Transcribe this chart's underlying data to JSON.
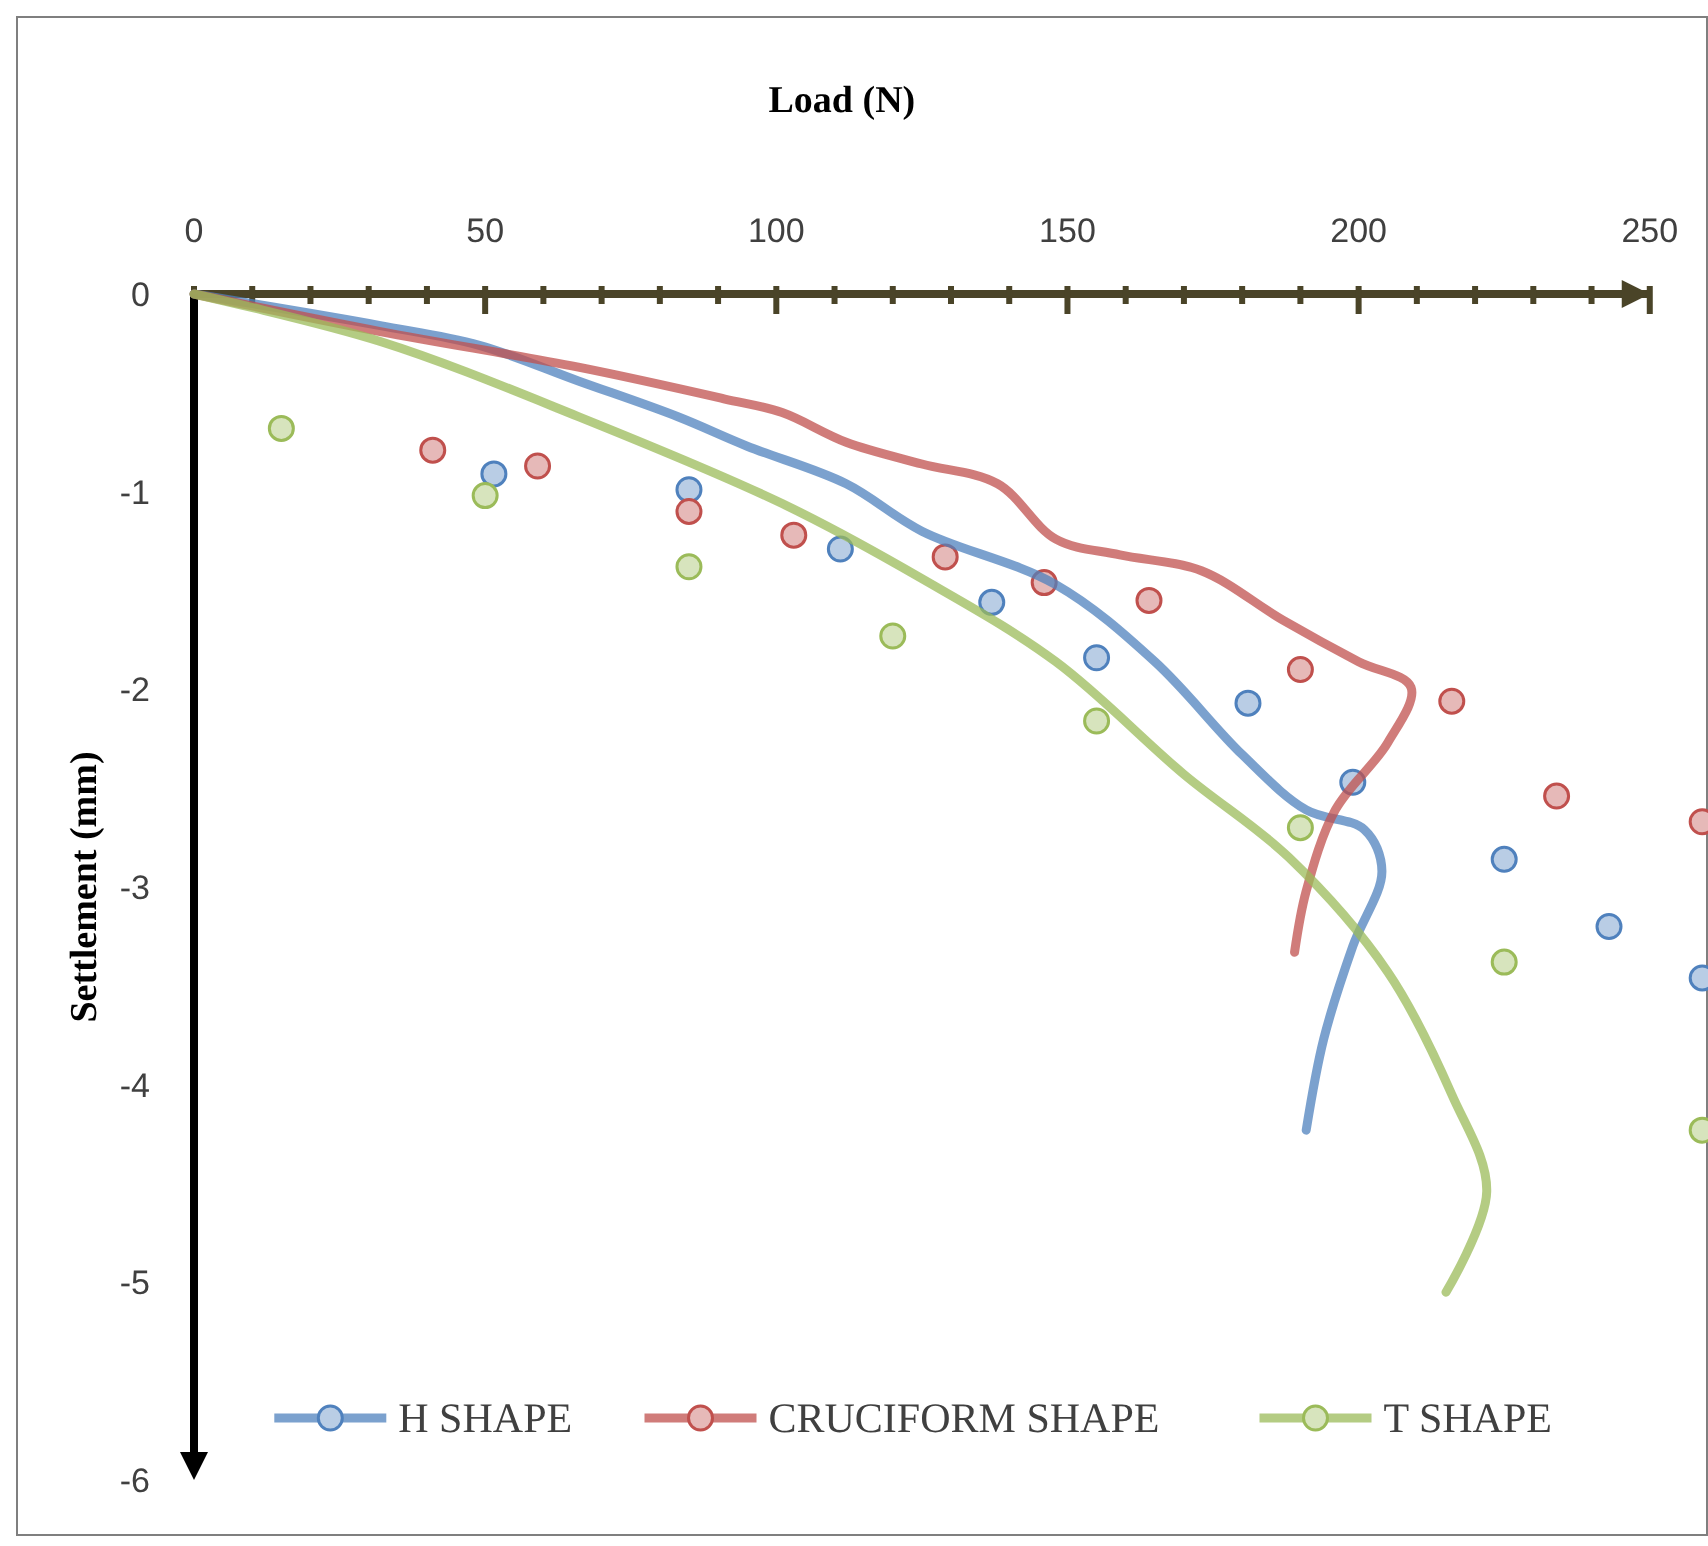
{
  "chart_data": {
    "type": "scatter",
    "xlabel": "Load (N)",
    "ylabel": "Settlement (mm)",
    "xlim": [
      0,
      260
    ],
    "ylim": [
      -6,
      0
    ],
    "xticks": [
      0,
      {
        "value": 10,
        "label": null
      },
      {
        "value": 20,
        "label": null
      },
      {
        "value": 30,
        "label": null
      },
      {
        "value": 40,
        "label": null
      },
      50,
      {
        "value": 60,
        "label": null
      },
      {
        "value": 70,
        "label": null
      },
      {
        "value": 80,
        "label": null
      },
      {
        "value": 90,
        "label": null
      },
      100,
      {
        "value": 110,
        "label": null
      },
      {
        "value": 120,
        "label": null
      },
      {
        "value": 130,
        "label": null
      },
      {
        "value": 140,
        "label": null
      },
      150,
      {
        "value": 160,
        "label": null
      },
      {
        "value": 170,
        "label": null
      },
      {
        "value": 180,
        "label": null
      },
      {
        "value": 190,
        "label": null
      },
      200,
      {
        "value": 210,
        "label": null
      },
      {
        "value": 220,
        "label": null
      },
      {
        "value": 230,
        "label": null
      },
      {
        "value": 240,
        "label": null
      },
      250
    ],
    "yticks": [
      0,
      -1,
      -2,
      -3,
      -4,
      -5,
      -6
    ],
    "grid": false,
    "legend": "bottom",
    "marker": "circle",
    "line_style": "solid",
    "series": [
      {
        "name": "H SHAPE",
        "color": "#4f81bd",
        "x": [
          51.5,
          85,
          111,
          137,
          155,
          181,
          199,
          225,
          243,
          259
        ],
        "values": [
          -0.91,
          -0.99,
          -1.29,
          -1.56,
          -1.84,
          -2.07,
          -2.47,
          -2.86,
          -3.2,
          -3.46
        ]
      },
      {
        "name": "CRUCIFORM SHAPE",
        "color": "#c0504d",
        "x": [
          41,
          59,
          85,
          103,
          129,
          146,
          164,
          190,
          216,
          234,
          259
        ],
        "values": [
          -0.79,
          -0.87,
          -1.1,
          -1.22,
          -1.33,
          -1.46,
          -1.55,
          -1.9,
          -2.06,
          -2.54,
          -2.67
        ]
      },
      {
        "name": "T SHAPE",
        "color": "#9bbb59",
        "x": [
          15,
          50,
          85,
          120,
          155,
          190,
          225,
          259
        ],
        "values": [
          -0.68,
          -1.02,
          -1.38,
          -1.73,
          -2.16,
          -2.7,
          -3.38,
          -4.23
        ]
      },
      {
        "type": "line",
        "marker": "none",
        "color": "#4f81bd",
        "x": [
          0,
          32,
          49,
          66,
          83,
          95,
          112,
          125,
          148,
          165,
          180,
          191,
          201,
          204,
          199,
          194,
          191
        ],
        "values": [
          0,
          -0.16,
          -0.26,
          -0.44,
          -0.62,
          -0.77,
          -0.96,
          -1.2,
          -1.47,
          -1.86,
          -2.33,
          -2.61,
          -2.71,
          -2.92,
          -3.3,
          -3.77,
          -4.23
        ]
      },
      {
        "type": "line",
        "marker": "none",
        "color": "#c0504d",
        "x": [
          0,
          32,
          66,
          91,
          101,
          112,
          125,
          138,
          148,
          159,
          173,
          187,
          200,
          209,
          205,
          196,
          191,
          189
        ],
        "values": [
          0,
          -0.19,
          -0.37,
          -0.53,
          -0.6,
          -0.75,
          -0.86,
          -0.96,
          -1.24,
          -1.32,
          -1.4,
          -1.65,
          -1.86,
          -1.99,
          -2.27,
          -2.61,
          -3.02,
          -3.33
        ]
      },
      {
        "type": "line",
        "marker": "none",
        "color": "#9bbb59",
        "x": [
          0,
          32,
          66,
          101,
          125,
          148,
          170,
          188,
          205,
          216,
          222,
          215
        ],
        "values": [
          0,
          -0.24,
          -0.62,
          -1.06,
          -1.44,
          -1.86,
          -2.43,
          -2.85,
          -3.43,
          -4.05,
          -4.54,
          -5.05
        ]
      }
    ]
  }
}
